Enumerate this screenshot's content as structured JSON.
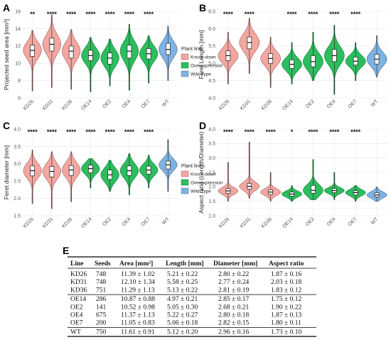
{
  "colors": {
    "knockdown": "#F4A6A0",
    "overexpression": "#2BBE5E",
    "wildtype": "#7EB2E4"
  },
  "legend": {
    "title": "Plant line:",
    "items": [
      "Knock-down",
      "Overexpression",
      "Wild-Type"
    ]
  },
  "chart_data": [
    {
      "panel": "A",
      "type": "violin",
      "categories": [
        "KD26",
        "KD31",
        "KD36",
        "OE14",
        "OE2",
        "OE4",
        "OE7",
        "WT"
      ],
      "groups": [
        "knockdown",
        "knockdown",
        "knockdown",
        "overexpression",
        "overexpression",
        "overexpression",
        "overexpression",
        "wildtype"
      ],
      "ylabel": "Projected seed area [mm²]",
      "ylim": [
        6,
        16
      ],
      "yticks": [
        6,
        8,
        10,
        12,
        14,
        16
      ],
      "significance": [
        "**",
        "****",
        "****",
        "****",
        "****",
        "****",
        "****",
        ""
      ],
      "stats": [
        {
          "min": 6.8,
          "q1": 10.8,
          "median": 11.5,
          "q3": 12.1,
          "max": 13.8
        },
        {
          "min": 7.2,
          "q1": 11.4,
          "median": 12.2,
          "q3": 12.9,
          "max": 15.6
        },
        {
          "min": 7.0,
          "q1": 10.6,
          "median": 11.4,
          "q3": 12.0,
          "max": 13.9
        },
        {
          "min": 6.7,
          "q1": 10.3,
          "median": 10.9,
          "q3": 11.5,
          "max": 13.0
        },
        {
          "min": 7.4,
          "q1": 9.9,
          "median": 10.6,
          "q3": 11.2,
          "max": 12.8
        },
        {
          "min": 6.9,
          "q1": 10.6,
          "median": 11.4,
          "q3": 12.1,
          "max": 14.5
        },
        {
          "min": 7.7,
          "q1": 10.5,
          "median": 11.1,
          "q3": 11.7,
          "max": 13.2
        },
        {
          "min": 8.0,
          "q1": 11.0,
          "median": 11.6,
          "q3": 12.3,
          "max": 14.3
        }
      ]
    },
    {
      "panel": "B",
      "type": "violin",
      "categories": [
        "KD26",
        "KD31",
        "KD36",
        "OE14",
        "OE2",
        "OE4",
        "OE7",
        "WT"
      ],
      "groups": [
        "knockdown",
        "knockdown",
        "knockdown",
        "overexpression",
        "overexpression",
        "overexpression",
        "overexpression",
        "wildtype"
      ],
      "ylabel": "Feret Length [mm]",
      "ylim": [
        4.0,
        6.5
      ],
      "yticks": [
        4.0,
        4.5,
        5.0,
        5.5,
        6.0,
        6.5
      ],
      "significance": [
        "****",
        "****",
        "",
        "****",
        "****",
        "****",
        "****",
        ""
      ],
      "stats": [
        {
          "min": 4.4,
          "q1": 5.08,
          "median": 5.22,
          "q3": 5.36,
          "max": 5.9
        },
        {
          "min": 4.7,
          "q1": 5.42,
          "median": 5.6,
          "q3": 5.76,
          "max": 6.3
        },
        {
          "min": 4.3,
          "q1": 5.0,
          "median": 5.14,
          "q3": 5.28,
          "max": 5.75
        },
        {
          "min": 4.4,
          "q1": 4.85,
          "median": 4.97,
          "q3": 5.1,
          "max": 5.6
        },
        {
          "min": 4.5,
          "q1": 4.9,
          "median": 5.05,
          "q3": 5.22,
          "max": 5.9
        },
        {
          "min": 4.1,
          "q1": 5.05,
          "median": 5.22,
          "q3": 5.4,
          "max": 6.1
        },
        {
          "min": 4.5,
          "q1": 4.95,
          "median": 5.06,
          "q3": 5.18,
          "max": 5.6
        },
        {
          "min": 4.6,
          "q1": 4.98,
          "median": 5.12,
          "q3": 5.26,
          "max": 5.8
        }
      ]
    },
    {
      "panel": "C",
      "type": "violin",
      "categories": [
        "KD26",
        "KD31",
        "KD36",
        "OE14",
        "OE2",
        "OE4",
        "OE7",
        "WT"
      ],
      "groups": [
        "knockdown",
        "knockdown",
        "knockdown",
        "overexpression",
        "overexpression",
        "overexpression",
        "overexpression",
        "wildtype"
      ],
      "ylabel": "Feret diameter [mm]",
      "ylim": [
        1.5,
        4.0
      ],
      "yticks": [
        1.5,
        2.0,
        2.5,
        3.0,
        3.5,
        4.0
      ],
      "significance": [
        "****",
        "****",
        "****",
        "****",
        "****",
        "****",
        "****",
        ""
      ],
      "stats": [
        {
          "min": 1.85,
          "q1": 2.65,
          "median": 2.8,
          "q3": 2.94,
          "max": 3.4
        },
        {
          "min": 1.7,
          "q1": 2.62,
          "median": 2.78,
          "q3": 2.92,
          "max": 3.35
        },
        {
          "min": 1.9,
          "q1": 2.66,
          "median": 2.82,
          "q3": 2.95,
          "max": 3.35
        },
        {
          "min": 2.3,
          "q1": 2.74,
          "median": 2.86,
          "q3": 2.96,
          "max": 3.15
        },
        {
          "min": 2.2,
          "q1": 2.55,
          "median": 2.68,
          "q3": 2.82,
          "max": 3.1
        },
        {
          "min": 2.1,
          "q1": 2.66,
          "median": 2.8,
          "q3": 2.94,
          "max": 3.3
        },
        {
          "min": 2.3,
          "q1": 2.7,
          "median": 2.82,
          "q3": 2.93,
          "max": 3.25
        },
        {
          "min": 2.2,
          "q1": 2.85,
          "median": 2.97,
          "q3": 3.08,
          "max": 3.7
        }
      ]
    },
    {
      "panel": "D",
      "type": "violin",
      "categories": [
        "KD26",
        "KD31",
        "KD36",
        "OE14",
        "OE2",
        "OE4",
        "OE7",
        "WT"
      ],
      "groups": [
        "knockdown",
        "knockdown",
        "knockdown",
        "overexpression",
        "overexpression",
        "overexpression",
        "overexpression",
        "wildtype"
      ],
      "ylabel": "Aspect ratio (Length/Diameter)",
      "ylim": [
        1.0,
        4.0
      ],
      "yticks": [
        1.0,
        1.5,
        2.0,
        2.5,
        3.0,
        3.5,
        4.0
      ],
      "significance": [
        "****",
        "****",
        "****",
        "*",
        "****",
        "****",
        "****",
        ""
      ],
      "stats": [
        {
          "min": 1.5,
          "q1": 1.78,
          "median": 1.86,
          "q3": 1.94,
          "max": 2.85
        },
        {
          "min": 1.6,
          "q1": 1.92,
          "median": 2.02,
          "q3": 2.12,
          "max": 3.55
        },
        {
          "min": 1.5,
          "q1": 1.74,
          "median": 1.82,
          "q3": 1.9,
          "max": 2.5
        },
        {
          "min": 1.5,
          "q1": 1.68,
          "median": 1.75,
          "q3": 1.82,
          "max": 2.05
        },
        {
          "min": 1.55,
          "q1": 1.78,
          "median": 1.88,
          "q3": 2.05,
          "max": 2.95
        },
        {
          "min": 1.55,
          "q1": 1.8,
          "median": 1.87,
          "q3": 1.94,
          "max": 2.5
        },
        {
          "min": 1.5,
          "q1": 1.72,
          "median": 1.8,
          "q3": 1.87,
          "max": 2.05
        },
        {
          "min": 1.5,
          "q1": 1.65,
          "median": 1.72,
          "q3": 1.8,
          "max": 2.0
        }
      ]
    }
  ],
  "panel_labels": [
    "A",
    "B",
    "C",
    "D",
    "E"
  ],
  "table": {
    "headers": [
      "Line",
      "Seeds",
      "Area [mm²]",
      "Length [mm]",
      "Diameter [mm]",
      "Aspect ratio"
    ],
    "groups": [
      [
        [
          "KD26",
          "748",
          "11.39 ± 1.02",
          "5.21 ± 0.22",
          "2.80 ± 0.22",
          "1.87 ± 0.16"
        ],
        [
          "KD31",
          "748",
          "12.10 ± 1.34",
          "5.58 ± 0.25",
          "2.77 ± 0.24",
          "2.03 ± 0.18"
        ],
        [
          "KD36",
          "751",
          "11.29 ± 1.13",
          "5.13 ± 0.22",
          "2.81 ± 0.19",
          "1.83 ± 0.12"
        ]
      ],
      [
        [
          "OE14",
          "286",
          "10.87 ± 0.88",
          "4.97 ± 0.21",
          "2.85 ± 0.17",
          "1.75 ± 0.12"
        ],
        [
          "OE2",
          "141",
          "10.52 ± 0.98",
          "5.05 ± 0.30",
          "2.68 ± 0.21",
          "1.90 ± 0.22"
        ],
        [
          "OE4",
          "675",
          "11.37 ± 1.13",
          "5.22 ± 0.27",
          "2.80 ± 0.18",
          "1.87 ± 0.13"
        ],
        [
          "OE7",
          "200",
          "11.05 ± 0.83",
          "5.06 ± 0.18",
          "2.82 ± 0.15",
          "1.80 ± 0.11"
        ]
      ],
      [
        [
          "WT",
          "750",
          "11.61 ± 0.91",
          "5.12 ± 0.20",
          "2.96 ± 0.16",
          "1.73 ± 0.10"
        ]
      ]
    ]
  }
}
